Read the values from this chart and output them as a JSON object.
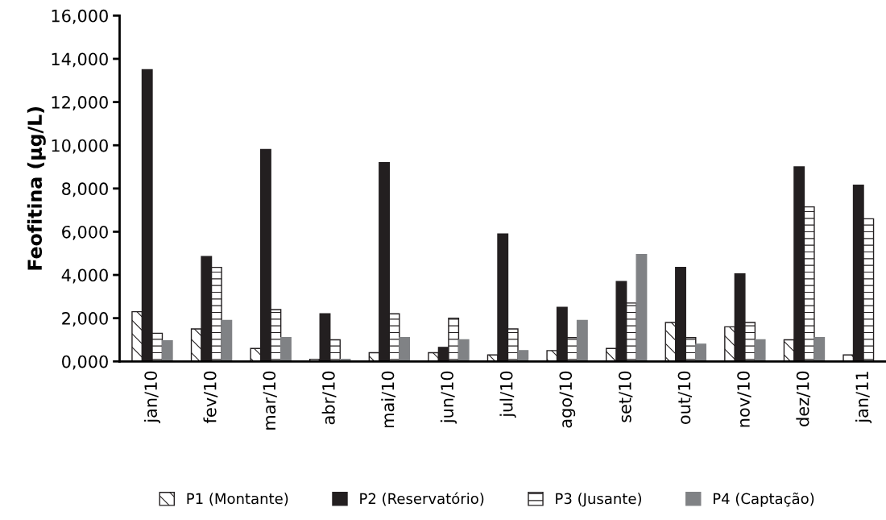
{
  "chart_data": {
    "type": "bar",
    "ylabel": "Feofitina (µg/L)",
    "categories": [
      "jan/10",
      "fev/10",
      "mar/10",
      "abr/10",
      "mai/10",
      "jun/10",
      "jul/10",
      "ago/10",
      "set/10",
      "out/10",
      "nov/10",
      "dez/10",
      "jan/11"
    ],
    "series": [
      {
        "name": "P1 (Montante)",
        "color": "#231f20",
        "values": [
          2300,
          1500,
          600,
          100,
          400,
          400,
          300,
          500,
          600,
          1800,
          1600,
          1000,
          300
        ]
      },
      {
        "name": "P2 (Reservatório)",
        "color": "#231f20",
        "values": [
          13500,
          4850,
          9800,
          2200,
          9200,
          650,
          5900,
          2500,
          3700,
          4350,
          4050,
          9000,
          8150
        ]
      },
      {
        "name": "P3 (Jusante)",
        "color": "#231f20",
        "values": [
          1300,
          4350,
          2400,
          1000,
          2200,
          2000,
          1500,
          1100,
          2700,
          1100,
          1800,
          7150,
          6600
        ]
      },
      {
        "name": "P4 (Captação)",
        "color": "#808285",
        "values": [
          950,
          1900,
          1100,
          100,
          1100,
          1000,
          500,
          1900,
          4950,
          800,
          1000,
          1100,
          null
        ]
      }
    ],
    "ylim": [
      0,
      16000
    ],
    "yticks": [
      {
        "value": 0,
        "label": "0,000"
      },
      {
        "value": 2000,
        "label": "2,000"
      },
      {
        "value": 4000,
        "label": "4,000"
      },
      {
        "value": 6000,
        "label": "6,000"
      },
      {
        "value": 8000,
        "label": "8,000"
      },
      {
        "value": 10000,
        "label": "10,000"
      },
      {
        "value": 12000,
        "label": "12,000"
      },
      {
        "value": 14000,
        "label": "14,000"
      },
      {
        "value": 16000,
        "label": "16,000"
      }
    ],
    "grid": false,
    "legend": "bottom"
  }
}
